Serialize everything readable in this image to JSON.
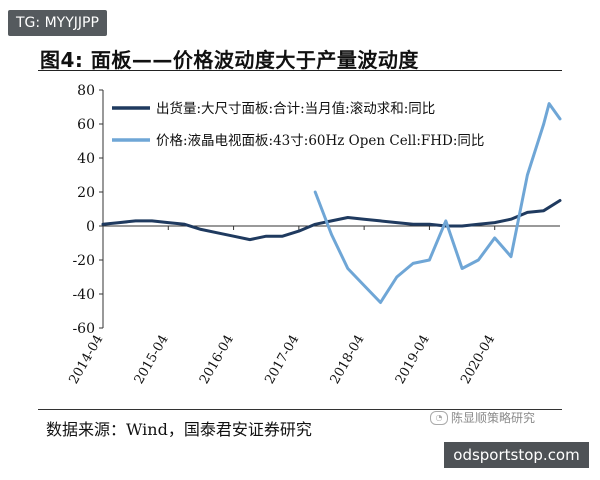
{
  "watermark_tag": "TG: MYYJJPP",
  "source_note": "数据来源：Wind，国泰君安证券研究",
  "wechat_watermark": "陈显顺策略研究",
  "site_label": "odsportstop.com",
  "colors": {
    "series1": "#1f3a5f",
    "series2": "#6fa6d6",
    "axis": "#333333"
  },
  "chart_data": {
    "type": "line",
    "title": "图4: 面板——价格波动度大于产量波动度",
    "ylim": [
      -60,
      80
    ],
    "yticks": [
      80,
      60,
      40,
      20,
      0,
      -20,
      -40,
      -60
    ],
    "xlim": [
      "2014-04",
      "2021-04"
    ],
    "xticks": [
      "2014-04",
      "2015-04",
      "2016-04",
      "2017-04",
      "2018-04",
      "2019-04",
      "2020-04"
    ],
    "legend_position": "top-left",
    "series": [
      {
        "name": "出货量:大尺寸面板:合计:当月值:滚动求和:同比",
        "color": "#1f3a5f",
        "points": [
          [
            "2014-04",
            1
          ],
          [
            "2014-07",
            2
          ],
          [
            "2014-10",
            3
          ],
          [
            "2015-01",
            3
          ],
          [
            "2015-04",
            2
          ],
          [
            "2015-07",
            1
          ],
          [
            "2015-10",
            -2
          ],
          [
            "2016-01",
            -4
          ],
          [
            "2016-04",
            -6
          ],
          [
            "2016-07",
            -8
          ],
          [
            "2016-10",
            -6
          ],
          [
            "2017-01",
            -6
          ],
          [
            "2017-04",
            -3
          ],
          [
            "2017-07",
            1
          ],
          [
            "2017-10",
            3
          ],
          [
            "2018-01",
            5
          ],
          [
            "2018-04",
            4
          ],
          [
            "2018-07",
            3
          ],
          [
            "2018-10",
            2
          ],
          [
            "2019-01",
            1
          ],
          [
            "2019-04",
            1
          ],
          [
            "2019-07",
            0
          ],
          [
            "2019-10",
            0
          ],
          [
            "2020-01",
            1
          ],
          [
            "2020-04",
            2
          ],
          [
            "2020-07",
            4
          ],
          [
            "2020-10",
            8
          ],
          [
            "2021-01",
            9
          ],
          [
            "2021-04",
            15
          ]
        ]
      },
      {
        "name": "价格:液晶电视面板:43寸:60Hz Open Cell:FHD:同比",
        "color": "#6fa6d6",
        "points": [
          [
            "2017-07",
            20
          ],
          [
            "2017-10",
            -5
          ],
          [
            "2018-01",
            -25
          ],
          [
            "2018-04",
            -35
          ],
          [
            "2018-07",
            -45
          ],
          [
            "2018-10",
            -30
          ],
          [
            "2019-01",
            -22
          ],
          [
            "2019-04",
            -20
          ],
          [
            "2019-07",
            3
          ],
          [
            "2019-10",
            -25
          ],
          [
            "2020-01",
            -20
          ],
          [
            "2020-04",
            -7
          ],
          [
            "2020-07",
            -18
          ],
          [
            "2020-10",
            30
          ],
          [
            "2021-01",
            60
          ],
          [
            "2021-02",
            72
          ],
          [
            "2021-04",
            63
          ]
        ]
      }
    ]
  }
}
